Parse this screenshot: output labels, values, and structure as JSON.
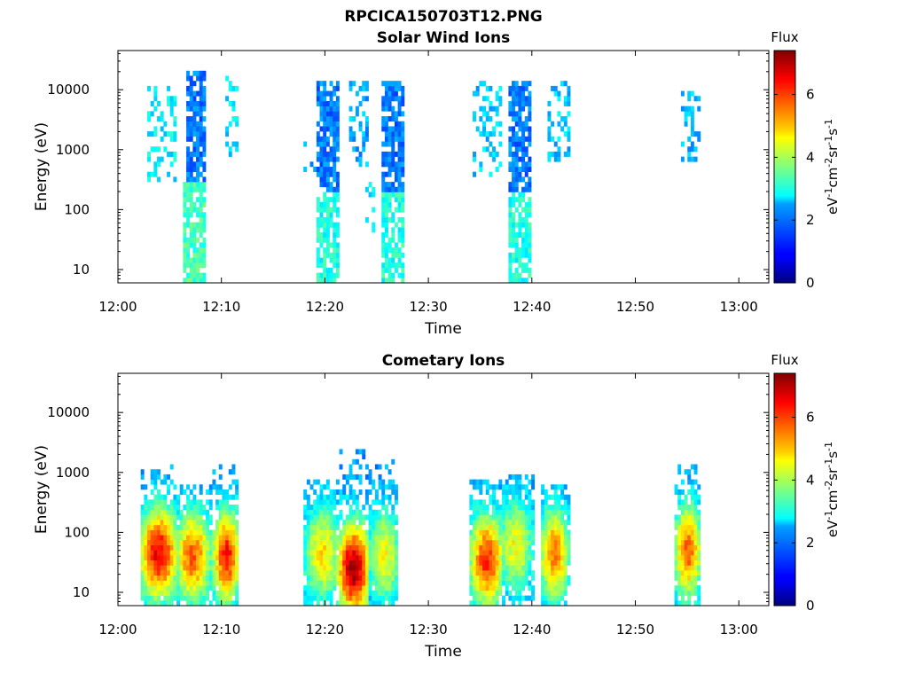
{
  "figure": {
    "title": "RPCICA150703T12.PNG"
  },
  "chart_data": [
    {
      "type": "heatmap",
      "title": "Solar Wind Ions",
      "xlabel": "Time",
      "ylabel": "Energy (eV)",
      "x_ticks": [
        "12:00",
        "12:10",
        "12:20",
        "12:30",
        "12:40",
        "12:50",
        "13:00"
      ],
      "x_range_minutes": [
        0,
        63.5
      ],
      "y_scale": "log",
      "y_ticks": [
        "10",
        "100",
        "1000",
        "10000"
      ],
      "y_range": [
        6,
        45000
      ],
      "colorbar": {
        "title": "Flux",
        "label": "eV-1cm-2sr-1s-1",
        "ticks": [
          "0",
          "2",
          "4",
          "6"
        ],
        "range": [
          0,
          7.4
        ],
        "colormap": "jet"
      },
      "bursts": [
        {
          "t0": 2.8,
          "t1": 5.6,
          "emin": 300,
          "emax": 12000,
          "level": 2.7,
          "density": 0.35
        },
        {
          "t0": 6.4,
          "t1": 8.6,
          "emin": 6,
          "emax": 300,
          "level": 3.3,
          "density": 0.75
        },
        {
          "t0": 6.8,
          "t1": 8.6,
          "emin": 300,
          "emax": 20000,
          "level": 1.8,
          "density": 0.8
        },
        {
          "t0": 10.4,
          "t1": 11.8,
          "emin": 600,
          "emax": 18000,
          "level": 2.5,
          "density": 0.35
        },
        {
          "t0": 18.0,
          "t1": 19.6,
          "emin": 400,
          "emax": 1500,
          "level": 2.2,
          "density": 0.2
        },
        {
          "t0": 19.4,
          "t1": 21.6,
          "emin": 6,
          "emax": 200,
          "level": 3.0,
          "density": 0.75
        },
        {
          "t0": 19.4,
          "t1": 21.6,
          "emin": 200,
          "emax": 13000,
          "level": 1.8,
          "density": 0.8
        },
        {
          "t0": 22.6,
          "t1": 24.6,
          "emin": 500,
          "emax": 13000,
          "level": 2.2,
          "density": 0.4
        },
        {
          "t0": 24.0,
          "t1": 25.0,
          "emin": 40,
          "emax": 400,
          "level": 2.5,
          "density": 0.4
        },
        {
          "t0": 25.8,
          "t1": 28.0,
          "emin": 6,
          "emax": 200,
          "level": 3.0,
          "density": 0.75
        },
        {
          "t0": 25.8,
          "t1": 28.0,
          "emin": 200,
          "emax": 13000,
          "level": 1.8,
          "density": 0.8
        },
        {
          "t0": 34.6,
          "t1": 37.6,
          "emin": 350,
          "emax": 15000,
          "level": 2.4,
          "density": 0.35
        },
        {
          "t0": 38.0,
          "t1": 40.4,
          "emin": 6,
          "emax": 200,
          "level": 3.0,
          "density": 0.75
        },
        {
          "t0": 38.0,
          "t1": 40.4,
          "emin": 200,
          "emax": 14000,
          "level": 1.8,
          "density": 0.8
        },
        {
          "t0": 42.0,
          "t1": 44.2,
          "emin": 600,
          "emax": 15000,
          "level": 2.4,
          "density": 0.4
        },
        {
          "t0": 54.8,
          "t1": 56.8,
          "emin": 600,
          "emax": 12000,
          "level": 2.3,
          "density": 0.4
        }
      ]
    },
    {
      "type": "heatmap",
      "title": "Cometary Ions",
      "xlabel": "Time",
      "ylabel": "Energy (eV)",
      "x_ticks": [
        "12:00",
        "12:10",
        "12:20",
        "12:30",
        "12:40",
        "12:50",
        "13:00"
      ],
      "x_range_minutes": [
        0,
        63.5
      ],
      "y_scale": "log",
      "y_ticks": [
        "10",
        "100",
        "1000",
        "10000"
      ],
      "y_range": [
        6,
        45000
      ],
      "colorbar": {
        "title": "Flux",
        "label": "eV-1cm-2sr-1s-1",
        "ticks": [
          "0",
          "2",
          "4",
          "6"
        ],
        "range": [
          0,
          7.4
        ],
        "colormap": "jet"
      },
      "bursts": [
        {
          "t0": 2.2,
          "t1": 5.8,
          "emin": 6,
          "emax": 1300,
          "peak_t": 4.0,
          "peak_e": 45,
          "peak": 6.6
        },
        {
          "t0": 5.8,
          "t1": 9.2,
          "emin": 6,
          "emax": 600,
          "peak_t": 7.3,
          "peak_e": 40,
          "peak": 5.8
        },
        {
          "t0": 9.2,
          "t1": 11.8,
          "emin": 6,
          "emax": 1300,
          "peak_t": 10.6,
          "peak_e": 40,
          "peak": 6.4
        },
        {
          "t0": 18.0,
          "t1": 21.4,
          "emin": 6,
          "emax": 800,
          "peak_t": 20.0,
          "peak_e": 45,
          "peak": 4.8
        },
        {
          "t0": 21.2,
          "t1": 24.4,
          "emin": 6,
          "emax": 2500,
          "peak_t": 23.0,
          "peak_e": 25,
          "peak": 7.2
        },
        {
          "t0": 24.4,
          "t1": 27.4,
          "emin": 6,
          "emax": 1800,
          "peak_t": 26.0,
          "peak_e": 40,
          "peak": 4.6
        },
        {
          "t0": 34.2,
          "t1": 37.4,
          "emin": 6,
          "emax": 700,
          "peak_t": 36.0,
          "peak_e": 35,
          "peak": 6.2
        },
        {
          "t0": 37.4,
          "t1": 40.6,
          "emin": 6,
          "emax": 900,
          "peak_t": 38.8,
          "peak_e": 60,
          "peak": 4.6
        },
        {
          "t0": 41.2,
          "t1": 44.0,
          "emin": 6,
          "emax": 600,
          "peak_t": 42.6,
          "peak_e": 45,
          "peak": 5.6
        },
        {
          "t0": 54.2,
          "t1": 56.8,
          "emin": 6,
          "emax": 1300,
          "peak_t": 55.6,
          "peak_e": 50,
          "peak": 5.8
        }
      ]
    }
  ]
}
